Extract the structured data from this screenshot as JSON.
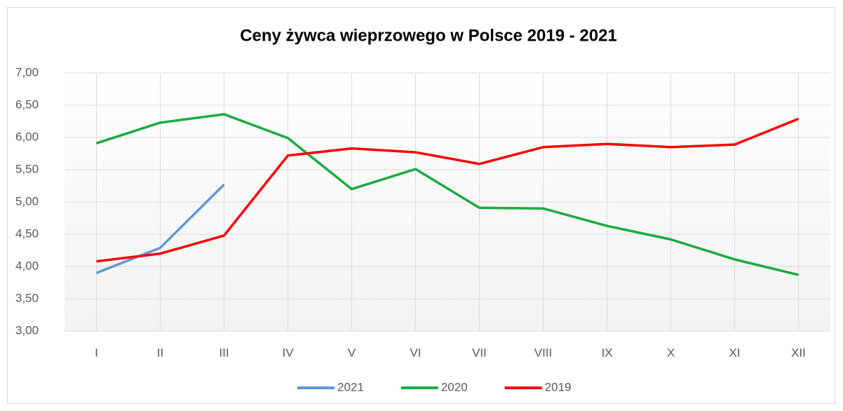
{
  "chart_data": {
    "type": "line",
    "title": "Ceny żywca wieprzowego w Polsce 2019 - 2021",
    "categories": [
      "I",
      "II",
      "III",
      "IV",
      "V",
      "VI",
      "VII",
      "VIII",
      "IX",
      "X",
      "XI",
      "XII"
    ],
    "series": [
      {
        "name": "2021",
        "color": "#5b9bd5",
        "values": [
          3.9,
          4.29,
          5.27,
          null,
          null,
          null,
          null,
          null,
          null,
          null,
          null,
          null
        ]
      },
      {
        "name": "2020",
        "color": "#1aab40",
        "values": [
          5.91,
          6.23,
          6.36,
          5.99,
          5.2,
          5.51,
          4.91,
          4.9,
          4.63,
          4.42,
          4.11,
          3.87
        ]
      },
      {
        "name": "2019",
        "color": "#ff0000",
        "values": [
          4.08,
          4.2,
          4.48,
          5.72,
          5.83,
          5.77,
          5.59,
          5.85,
          5.9,
          5.85,
          5.89,
          6.29
        ]
      }
    ],
    "ylim": [
      3,
      7
    ],
    "yticks": [
      {
        "value": 3,
        "label": "3,00"
      },
      {
        "value": 3.5,
        "label": "3,50"
      },
      {
        "value": 4,
        "label": "4,00"
      },
      {
        "value": 4.5,
        "label": "4,50"
      },
      {
        "value": 5,
        "label": "5,00"
      },
      {
        "value": 5.5,
        "label": "5,50"
      },
      {
        "value": 6,
        "label": "6,00"
      },
      {
        "value": 6.5,
        "label": "6,50"
      },
      {
        "value": 7,
        "label": "7,00"
      }
    ],
    "grid": true,
    "legend": "bottom"
  }
}
